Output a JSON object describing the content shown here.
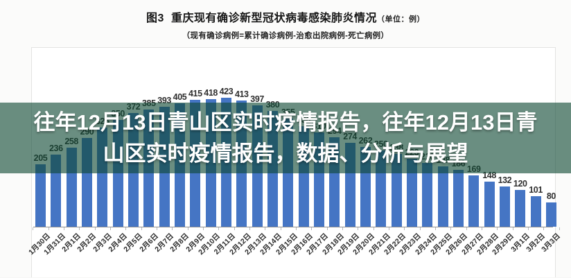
{
  "header": {
    "figure_label": "图3",
    "title": "重庆现有确诊新型冠状病毒感染肺炎情况",
    "unit_note": "（单位：例）",
    "subtitle": "（现有确诊病例=累计确诊病例-治愈出院病例-死亡病例）"
  },
  "overlay": {
    "line1": "往年12月13日青山区实时疫情报告，往年12月13日青",
    "line2": "山区实时疫情报告，数据、分析与展望",
    "bg_color": "rgba(15,73,52,0.62)",
    "text_color": "#ffffff"
  },
  "chart_data": {
    "type": "bar",
    "title": "图3 重庆现有确诊新型冠状病毒感染肺炎情况（单位：例）",
    "subtitle": "现有确诊病例=累计确诊病例-治愈出院病例-死亡病例",
    "categories": [
      "1月30日",
      "1月31日",
      "2月1日",
      "2月2日",
      "2月3日",
      "2月4日",
      "2月5日",
      "2月6日",
      "2月7日",
      "2月8日",
      "2月9日",
      "2月10日",
      "2月11日",
      "2月12日",
      "2月13日",
      "2月14日",
      "2月15日",
      "2月16日",
      "2月17日",
      "2月18日",
      "2月19日",
      "2月20日",
      "2月21日",
      "2月22日",
      "2月23日",
      "2月24日",
      "2月25日",
      "2月26日",
      "2月27日",
      "2月28日",
      "2月29日",
      "3月1日",
      "3月2日",
      "3月3日"
    ],
    "values": [
      205,
      236,
      258,
      290,
      326,
      350,
      372,
      385,
      393,
      405,
      415,
      418,
      423,
      413,
      397,
      380,
      355,
      330,
      310,
      294,
      274,
      262,
      250,
      238,
      223,
      210,
      198,
      186,
      169,
      148,
      132,
      120,
      101,
      80
    ],
    "ylim": [
      0,
      450
    ],
    "grid": false,
    "legend": false,
    "value_labels_shown": true,
    "bar_color": "#4575c4",
    "value_label_color": "#2f2f2f",
    "axis_color": "#8f8f8f",
    "xlabel": "",
    "ylabel": ""
  }
}
